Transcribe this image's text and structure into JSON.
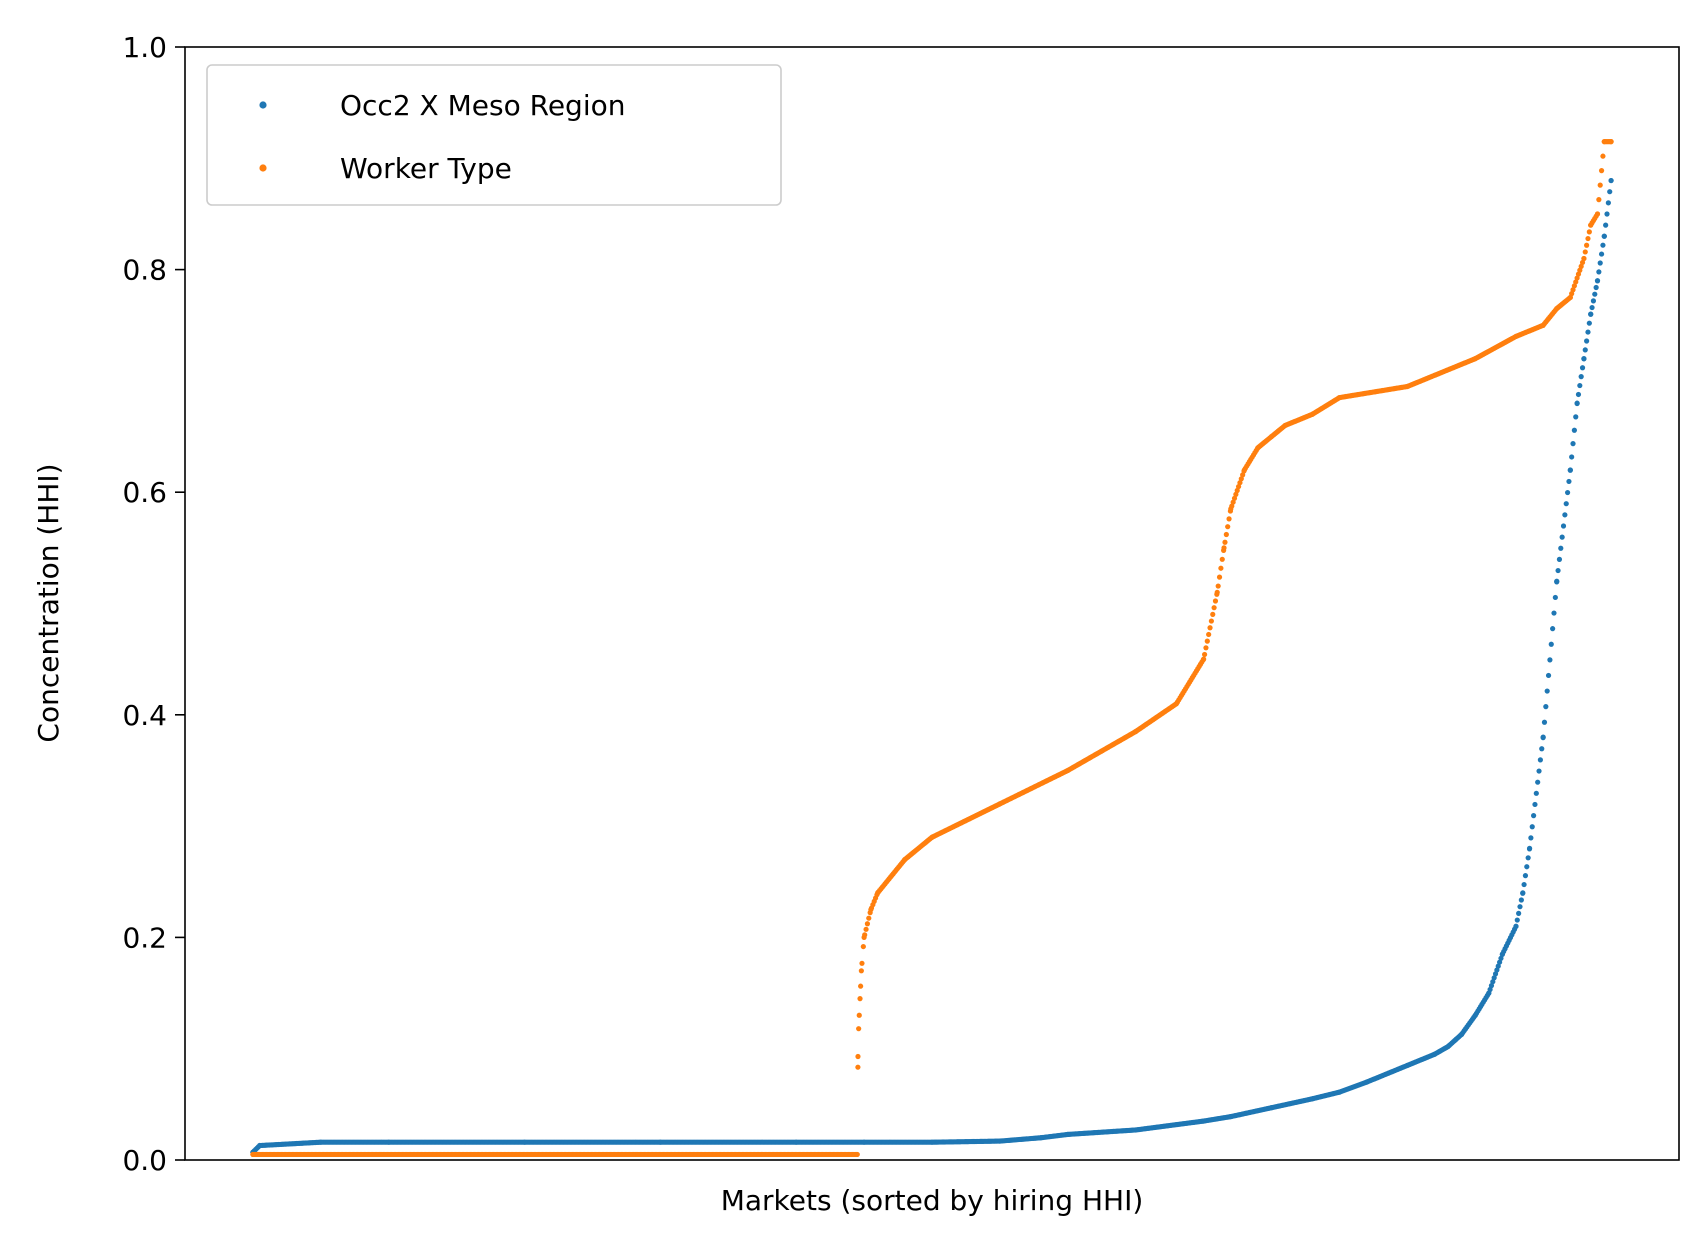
{
  "chart_data": {
    "type": "scatter",
    "title": "",
    "xlabel": "Markets (sorted by hiring HHI)",
    "ylabel": "Concentration (HHI)",
    "xlim": [
      -50,
      1050
    ],
    "ylim": [
      0,
      1.0
    ],
    "yticks": [
      "0.0",
      "0.2",
      "0.4",
      "0.6",
      "0.8",
      "1.0"
    ],
    "xticks": [],
    "grid": false,
    "legend_position": "upper-left",
    "series": [
      {
        "name": "Occ2 X Meso Region",
        "color": "#1f77b4",
        "marker_radius": 2.6,
        "point_count": 1000,
        "x": [
          0,
          5,
          50,
          100,
          200,
          300,
          400,
          450,
          500,
          550,
          580,
          600,
          650,
          700,
          720,
          750,
          780,
          800,
          820,
          850,
          870,
          880,
          890,
          900,
          910,
          920,
          930,
          935,
          940,
          950,
          960,
          970,
          975,
          980,
          985,
          990,
          995,
          1000
        ],
        "y": [
          0.007,
          0.013,
          0.016,
          0.016,
          0.016,
          0.016,
          0.016,
          0.016,
          0.016,
          0.017,
          0.02,
          0.023,
          0.027,
          0.035,
          0.039,
          0.047,
          0.055,
          0.061,
          0.07,
          0.085,
          0.095,
          0.102,
          0.113,
          0.13,
          0.15,
          0.185,
          0.21,
          0.24,
          0.28,
          0.38,
          0.52,
          0.62,
          0.68,
          0.72,
          0.76,
          0.79,
          0.83,
          0.88
        ]
      },
      {
        "name": "Worker Type",
        "color": "#ff7f0e",
        "marker_radius": 2.6,
        "point_count": 1000,
        "x": [
          0,
          445,
          445.5,
          446,
          447,
          448,
          450,
          455,
          460,
          480,
          500,
          550,
          600,
          650,
          680,
          700,
          710,
          715,
          720,
          730,
          740,
          750,
          760,
          780,
          800,
          850,
          900,
          930,
          950,
          960,
          970,
          980,
          985,
          990,
          995,
          1000
        ],
        "y": [
          0.005,
          0.005,
          0.093,
          0.118,
          0.145,
          0.17,
          0.2,
          0.225,
          0.24,
          0.27,
          0.29,
          0.32,
          0.35,
          0.385,
          0.41,
          0.45,
          0.51,
          0.55,
          0.585,
          0.62,
          0.64,
          0.65,
          0.66,
          0.67,
          0.685,
          0.695,
          0.72,
          0.74,
          0.75,
          0.765,
          0.775,
          0.81,
          0.84,
          0.85,
          0.915,
          0.915
        ]
      }
    ]
  }
}
